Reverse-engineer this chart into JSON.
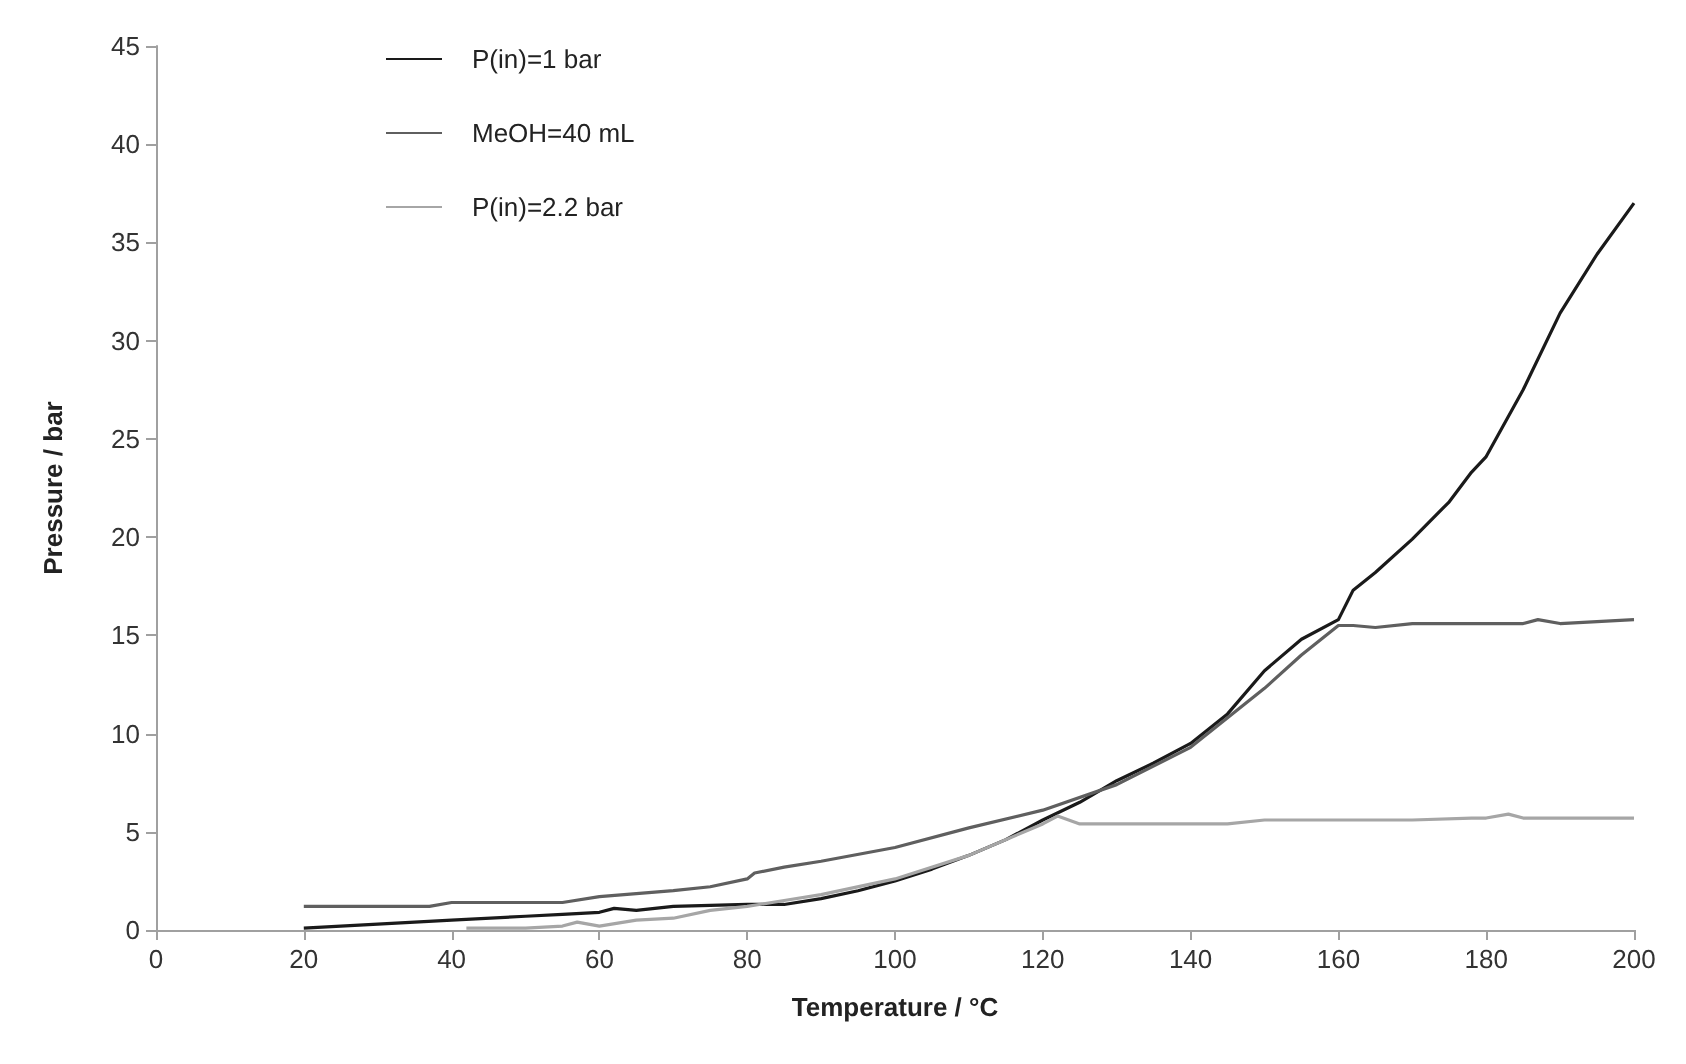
{
  "chart_data": {
    "type": "line",
    "xlabel": "Temperature / °C",
    "ylabel": "Pressure / bar",
    "xlim": [
      0,
      200
    ],
    "xticks": [
      0,
      20,
      40,
      60,
      80,
      100,
      120,
      140,
      160,
      180,
      200
    ],
    "ylim": [
      0,
      45
    ],
    "yticks": [
      0,
      5,
      10,
      15,
      20,
      25,
      30,
      35,
      40,
      45
    ],
    "grid": false,
    "legend": "top left",
    "marker": "none",
    "line_style": "solid",
    "series": [
      {
        "name": "P(in)=1 bar",
        "color": "#1a1a1a",
        "x": [
          20,
          25,
          35,
          40,
          50,
          55,
          60,
          62,
          65,
          70,
          80,
          85,
          90,
          95,
          100,
          105,
          110,
          115,
          120,
          125,
          130,
          135,
          140,
          145,
          150,
          155,
          160,
          162,
          165,
          170,
          175,
          178,
          180,
          185,
          190,
          195,
          200
        ],
        "values": [
          0.1,
          0.2,
          0.4,
          0.5,
          0.7,
          0.8,
          0.9,
          1.1,
          1.0,
          1.2,
          1.3,
          1.3,
          1.6,
          2.0,
          2.5,
          3.1,
          3.8,
          4.6,
          5.6,
          6.5,
          7.6,
          8.5,
          9.5,
          11.0,
          13.2,
          14.8,
          15.8,
          17.3,
          18.2,
          19.9,
          21.8,
          23.3,
          24.1,
          27.5,
          31.4,
          34.4,
          37.0
        ]
      },
      {
        "name": "MeOH=40 mL",
        "color": "#5f5f5f",
        "x": [
          20,
          30,
          37,
          40,
          50,
          55,
          60,
          70,
          75,
          80,
          81,
          85,
          90,
          100,
          110,
          120,
          130,
          140,
          150,
          155,
          160,
          162,
          165,
          170,
          180,
          185,
          187,
          190,
          200
        ],
        "values": [
          1.2,
          1.2,
          1.2,
          1.4,
          1.4,
          1.4,
          1.7,
          2.0,
          2.2,
          2.6,
          2.9,
          3.2,
          3.5,
          4.2,
          5.2,
          6.1,
          7.4,
          9.3,
          12.3,
          14.0,
          15.5,
          15.5,
          15.4,
          15.6,
          15.6,
          15.6,
          15.8,
          15.6,
          15.8
        ]
      },
      {
        "name": "P(in)=2.2 bar",
        "color": "#a6a6a6",
        "x": [
          42,
          50,
          55,
          57,
          60,
          65,
          70,
          75,
          80,
          85,
          90,
          100,
          110,
          120,
          122,
          125,
          135,
          145,
          150,
          160,
          170,
          178,
          180,
          183,
          185,
          190,
          200
        ],
        "values": [
          0.1,
          0.1,
          0.2,
          0.4,
          0.2,
          0.5,
          0.6,
          1.0,
          1.2,
          1.5,
          1.8,
          2.6,
          3.8,
          5.4,
          5.8,
          5.4,
          5.4,
          5.4,
          5.6,
          5.6,
          5.6,
          5.7,
          5.7,
          5.9,
          5.7,
          5.7,
          5.7
        ]
      }
    ]
  }
}
